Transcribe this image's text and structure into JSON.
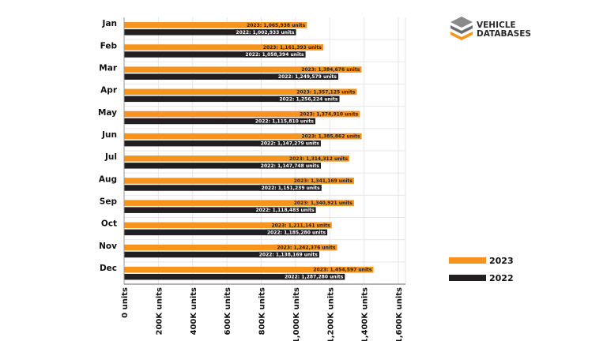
{
  "logo": {
    "line1": "VEHICLE",
    "line2": "DATABASES"
  },
  "chart_data": {
    "type": "bar",
    "orientation": "horizontal",
    "categories": [
      "Jan",
      "Feb",
      "Mar",
      "Apr",
      "May",
      "Jun",
      "Jul",
      "Aug",
      "Sep",
      "Oct",
      "Nov",
      "Dec"
    ],
    "series": [
      {
        "name": "2023",
        "color": "#f7941d",
        "values": [
          1065938,
          1161393,
          1384676,
          1357125,
          1374910,
          1385862,
          1314312,
          1341169,
          1340921,
          1211141,
          1242376,
          1454597
        ]
      },
      {
        "name": "2022",
        "color": "#231f20",
        "values": [
          1002933,
          1058394,
          1249579,
          1256224,
          1115810,
          1147279,
          1147748,
          1151239,
          1118483,
          1185280,
          1138169,
          1287280
        ]
      }
    ],
    "xlim": [
      0,
      1600000
    ],
    "x_ticks": [
      0,
      200000,
      400000,
      600000,
      800000,
      1000000,
      1200000,
      1400000,
      1600000
    ],
    "x_tick_labels": [
      "0 units",
      "200K units",
      "400K units",
      "600K units",
      "800K units",
      "1,000K units",
      "1,200K units",
      "1,400K units",
      "1,600K units"
    ],
    "data_label_unit": "units",
    "grid": true,
    "legend_placement": "bottom-right"
  }
}
